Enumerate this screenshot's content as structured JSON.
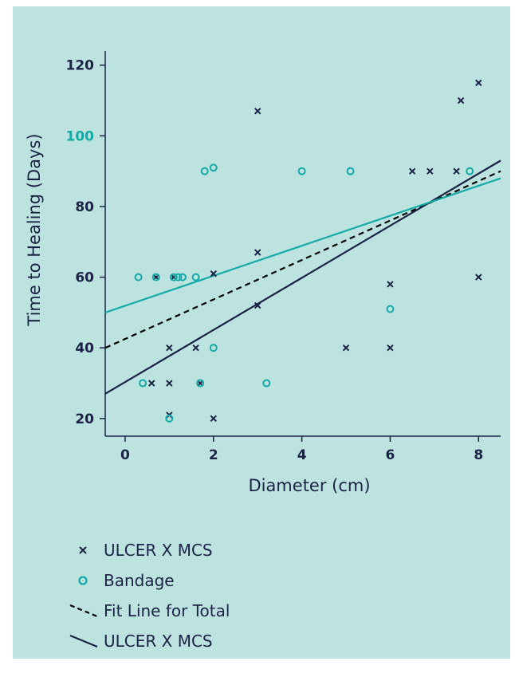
{
  "colors": {
    "background": "#bde3e0",
    "navy": "#1b2245",
    "teal": "#14aaa5",
    "black": "#000000"
  },
  "chart_data": {
    "type": "scatter",
    "title": "",
    "xlabel": "Diameter (cm)",
    "ylabel": "Time to Healing (Days)",
    "xlim": [
      -0.45,
      8.5
    ],
    "ylim": [
      15,
      124
    ],
    "x_ticks": [
      0,
      2,
      4,
      6,
      8
    ],
    "y_ticks": [
      20,
      40,
      60,
      80,
      100,
      120
    ],
    "highlight_y_tick": 100,
    "grid": false,
    "legend_position": "bottom-left",
    "series": [
      {
        "name": "ULCER X MCS",
        "kind": "points",
        "marker": "x",
        "color": "#1b2245",
        "points": [
          [
            0.6,
            30
          ],
          [
            0.7,
            60
          ],
          [
            1.0,
            40
          ],
          [
            1.0,
            30
          ],
          [
            1.0,
            21
          ],
          [
            1.1,
            60
          ],
          [
            1.6,
            40
          ],
          [
            1.7,
            30
          ],
          [
            2.0,
            61
          ],
          [
            2.0,
            20
          ],
          [
            3.0,
            107
          ],
          [
            3.0,
            67
          ],
          [
            3.0,
            52
          ],
          [
            5.0,
            40
          ],
          [
            6.0,
            58
          ],
          [
            6.0,
            40
          ],
          [
            6.5,
            90
          ],
          [
            6.9,
            90
          ],
          [
            7.5,
            90
          ],
          [
            7.6,
            110
          ],
          [
            8.0,
            115
          ],
          [
            8.0,
            60
          ]
        ]
      },
      {
        "name": "Bandage",
        "kind": "points",
        "marker": "o",
        "color": "#14aaa5",
        "points": [
          [
            0.3,
            60
          ],
          [
            0.4,
            30
          ],
          [
            0.7,
            60
          ],
          [
            1.0,
            20
          ],
          [
            1.1,
            60
          ],
          [
            1.2,
            60
          ],
          [
            1.3,
            60
          ],
          [
            1.6,
            60
          ],
          [
            1.7,
            30
          ],
          [
            1.8,
            90
          ],
          [
            2.0,
            91
          ],
          [
            2.0,
            40
          ],
          [
            3.2,
            30
          ],
          [
            4.0,
            90
          ],
          [
            5.1,
            90
          ],
          [
            6.0,
            51
          ],
          [
            7.8,
            90
          ]
        ]
      },
      {
        "name": "Fit Line for Total",
        "kind": "line",
        "style": "dashed",
        "color": "#000000",
        "from": [
          -0.45,
          40
        ],
        "to": [
          8.5,
          90
        ]
      },
      {
        "name": "ULCER X MCS",
        "kind": "line",
        "style": "solid",
        "color": "#1b2245",
        "from": [
          -0.45,
          27
        ],
        "to": [
          8.5,
          93
        ]
      },
      {
        "name": "",
        "kind": "line",
        "style": "solid",
        "color": "#14aaa5",
        "from": [
          -0.45,
          50
        ],
        "to": [
          8.5,
          88
        ]
      }
    ],
    "legend": [
      {
        "label": "ULCER X MCS",
        "symbol": "x",
        "color": "#1b2245"
      },
      {
        "label": "Bandage",
        "symbol": "o",
        "color": "#14aaa5"
      },
      {
        "label": "Fit Line for Total",
        "symbol": "dashed",
        "color": "#000000"
      },
      {
        "label": "ULCER X MCS",
        "symbol": "solid",
        "color": "#1b2245"
      }
    ]
  }
}
